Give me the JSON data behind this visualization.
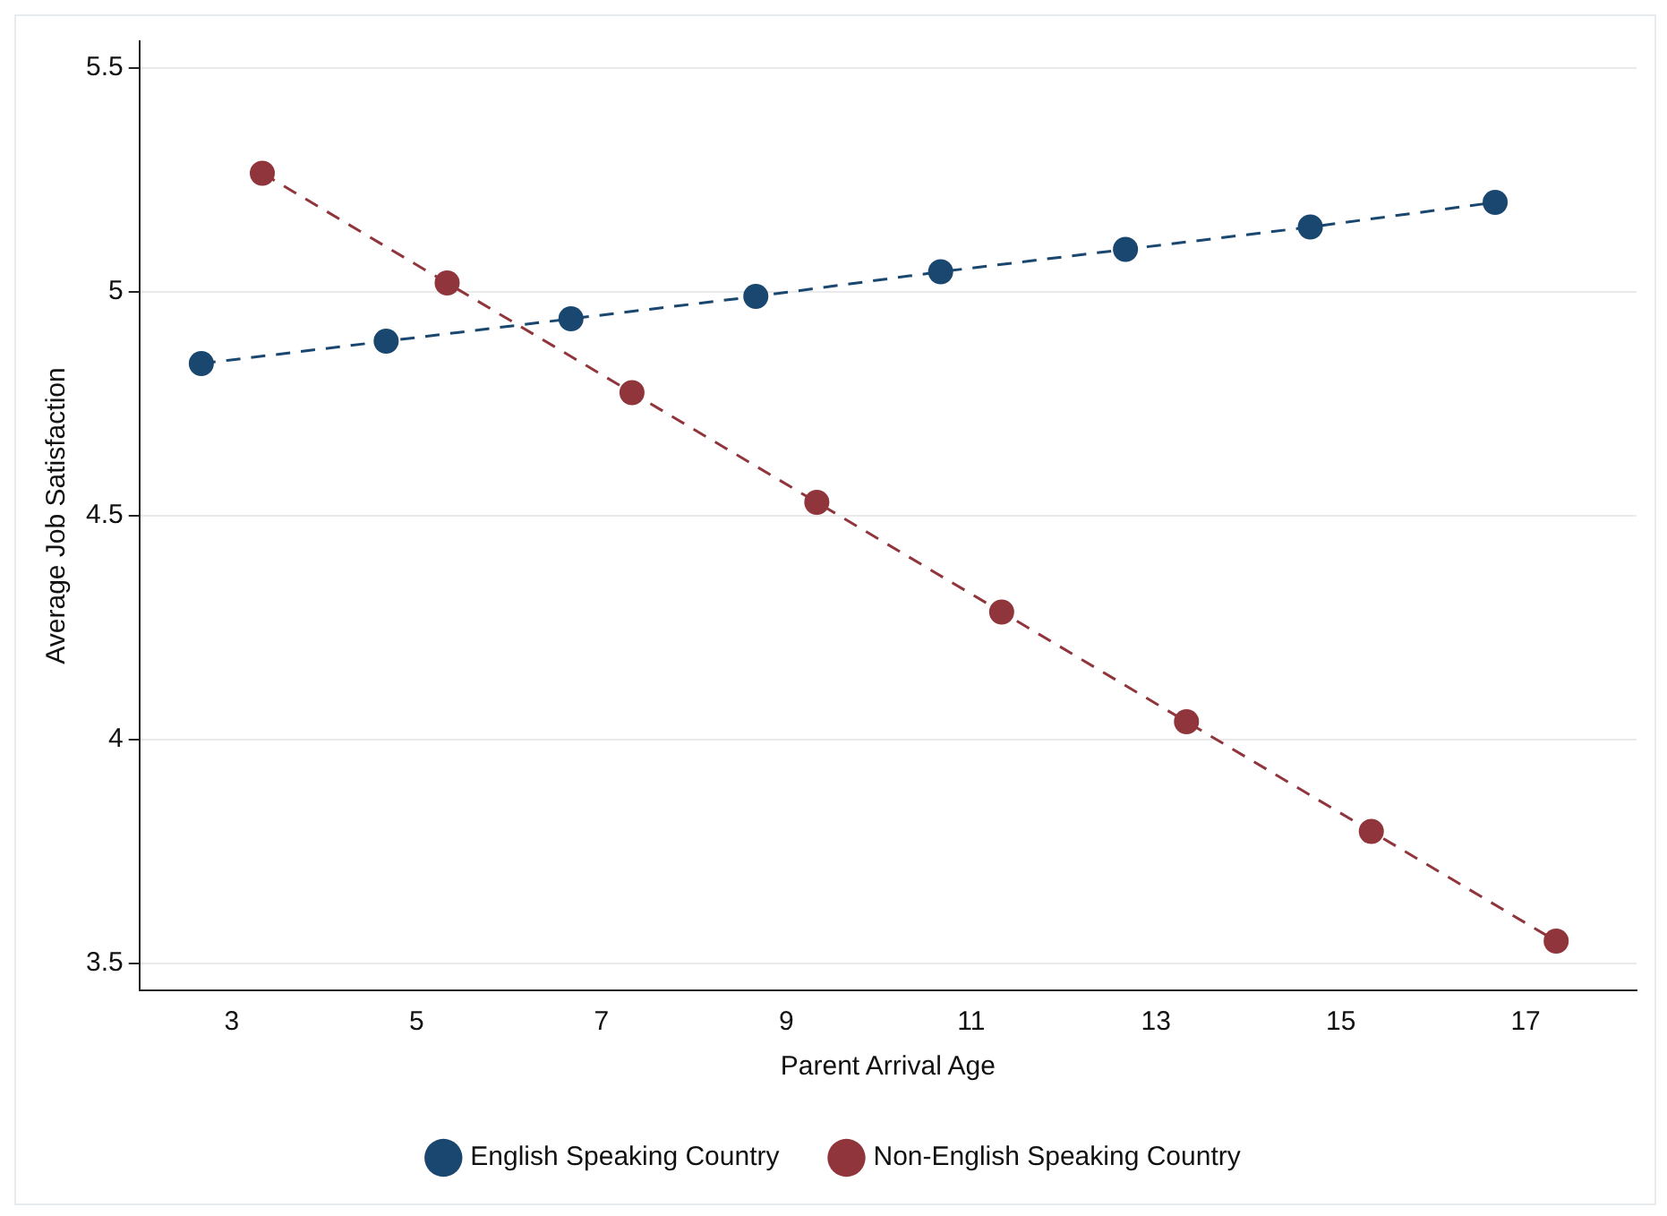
{
  "chart_data": {
    "type": "line",
    "xlabel": "Parent Arrival Age",
    "ylabel": "Average Job Satisfaction",
    "xlim": [
      2,
      18.2
    ],
    "xticks": [
      3,
      5,
      7,
      9,
      11,
      13,
      15,
      17
    ],
    "ylim": [
      3.44,
      5.56
    ],
    "yticks": [
      3.5,
      4,
      4.5,
      5,
      5.5
    ],
    "grid": "y",
    "legend": "bottom",
    "marker": "circle",
    "line_style": "dashed",
    "series": [
      {
        "name": "English Speaking Country",
        "color": "#1a476f",
        "x": [
          2.67,
          4.67,
          6.67,
          8.67,
          10.67,
          12.67,
          14.67,
          16.67
        ],
        "values": [
          4.84,
          4.89,
          4.94,
          4.99,
          5.045,
          5.095,
          5.145,
          5.2
        ]
      },
      {
        "name": "Non-English Speaking Country",
        "color": "#90353b",
        "x": [
          3.33,
          5.33,
          7.33,
          9.33,
          11.33,
          13.33,
          15.33,
          17.33
        ],
        "values": [
          5.265,
          5.02,
          4.775,
          4.53,
          4.285,
          4.04,
          3.795,
          3.55
        ]
      }
    ]
  }
}
